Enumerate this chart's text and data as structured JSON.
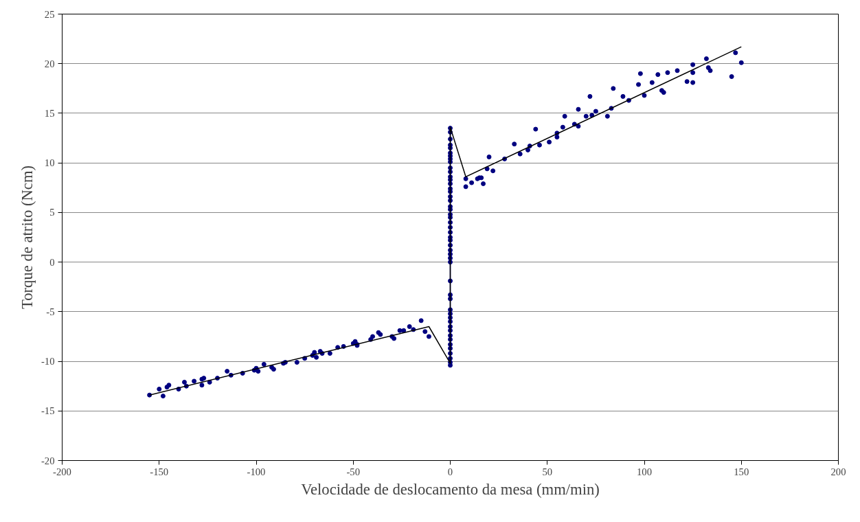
{
  "chart_data": {
    "type": "scatter",
    "xlabel": "Velocidade de deslocamento da mesa (mm/min)",
    "ylabel": "Torque de atrito (Ncm)",
    "xlim": [
      -200,
      200
    ],
    "xticks": [
      -200,
      -150,
      -100,
      -50,
      0,
      50,
      100,
      150,
      200
    ],
    "ylim": [
      -20,
      25
    ],
    "yticks": [
      -20,
      -15,
      -10,
      -5,
      0,
      5,
      10,
      15,
      20,
      25
    ],
    "grid": "y",
    "marker": "circle",
    "series": [
      {
        "color": "#000080",
        "x": [
          -155,
          -150,
          -148,
          -146,
          -145,
          -140,
          -137,
          -136,
          -132,
          -128,
          -128,
          -127,
          -124,
          -120,
          -115,
          -113,
          -107,
          -101,
          -100,
          -99,
          -96,
          -92,
          -91,
          -86,
          -85,
          -79,
          -75,
          -71,
          -70,
          -69,
          -67,
          -66,
          -62,
          -58,
          -55,
          -50,
          -49,
          -48,
          -48,
          -41,
          -40,
          -37,
          -36,
          -30,
          -29,
          -26,
          -24,
          -21,
          -19,
          -15,
          -13,
          -11
        ],
        "values": [
          -13.4,
          -12.8,
          -13.5,
          -12.6,
          -12.4,
          -12.8,
          -12.1,
          -12.5,
          -12.0,
          -11.8,
          -12.4,
          -11.7,
          -12.1,
          -11.7,
          -11.0,
          -11.4,
          -11.2,
          -10.9,
          -10.7,
          -11.0,
          -10.3,
          -10.6,
          -10.8,
          -10.2,
          -10.1,
          -10.1,
          -9.7,
          -9.4,
          -9.1,
          -9.6,
          -9.0,
          -9.2,
          -9.2,
          -8.6,
          -8.5,
          -8.2,
          -8.0,
          -8.3,
          -8.4,
          -7.8,
          -7.5,
          -7.1,
          -7.3,
          -7.5,
          -7.7,
          -6.9,
          -6.9,
          -6.5,
          -6.8,
          -5.9,
          -7.0,
          -7.5
        ]
      },
      {
        "type": "line",
        "marker": "circle",
        "color": "#000080",
        "x": [
          0,
          0,
          0,
          0,
          0,
          0,
          0,
          0,
          0,
          0,
          0,
          0,
          0,
          0,
          0,
          0,
          0,
          0,
          0,
          0,
          0,
          0,
          0,
          0,
          0,
          0,
          0,
          0,
          0,
          0,
          0,
          0,
          0,
          0,
          0,
          0,
          0,
          0,
          0,
          0,
          0,
          0,
          0,
          0,
          0,
          0,
          0,
          0,
          0
        ],
        "values": [
          13.5,
          13.1,
          12.4,
          11.8,
          11.5,
          11.0,
          10.7,
          10.4,
          10.1,
          9.5,
          9.1,
          8.6,
          8.3,
          7.9,
          7.4,
          7.1,
          6.6,
          6.2,
          5.6,
          5.3,
          4.8,
          4.5,
          4.0,
          3.5,
          3.0,
          2.5,
          2.2,
          1.7,
          1.2,
          0.8,
          0.4,
          0.0,
          -1.9,
          -3.3,
          -3.7,
          -4.8,
          -5.2,
          -5.6,
          -6.0,
          -6.5,
          -6.9,
          -7.4,
          -7.8,
          -8.3,
          -8.7,
          -9.2,
          -9.7,
          -10.1,
          -10.4
        ]
      },
      {
        "color": "#000080",
        "x": [
          8,
          8,
          11,
          14,
          15,
          16,
          17,
          19,
          20,
          22,
          28,
          33,
          36,
          40,
          41,
          44,
          46,
          51,
          55,
          55,
          58,
          59,
          64,
          66,
          66,
          70,
          72,
          73,
          75,
          81,
          83,
          84,
          89,
          92,
          97,
          98,
          100,
          104,
          107,
          109,
          110,
          112,
          117,
          122,
          125,
          125,
          125,
          132,
          133,
          134,
          145,
          147,
          150
        ],
        "values": [
          8.4,
          7.6,
          8.0,
          8.4,
          8.5,
          8.5,
          7.9,
          9.4,
          10.6,
          9.2,
          10.4,
          11.9,
          10.9,
          11.3,
          11.7,
          13.4,
          11.8,
          12.1,
          12.6,
          13.0,
          13.6,
          14.7,
          13.9,
          15.4,
          13.7,
          14.7,
          16.7,
          14.8,
          15.2,
          14.7,
          15.5,
          17.5,
          16.7,
          16.3,
          17.9,
          19.0,
          16.8,
          18.1,
          18.9,
          17.3,
          17.1,
          19.1,
          19.3,
          18.2,
          19.9,
          18.1,
          19.1,
          20.5,
          19.6,
          19.3,
          18.7,
          21.1,
          20.1
        ]
      },
      {
        "type": "line",
        "marker": "none",
        "color": "#000000",
        "x": [
          -155,
          -11,
          0,
          0,
          8,
          150
        ],
        "values": [
          -13.4,
          -6.5,
          -10.2,
          13.6,
          8.6,
          21.7
        ]
      }
    ]
  }
}
